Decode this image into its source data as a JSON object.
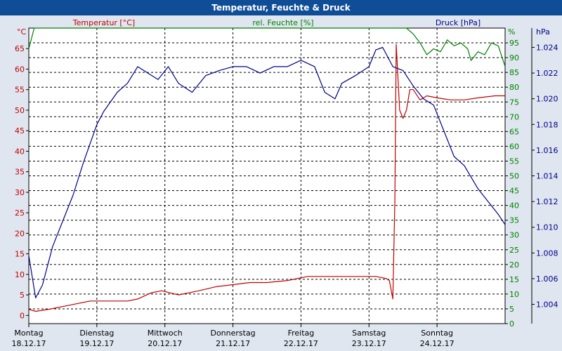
{
  "window": {
    "title": "Temperatur, Feuchte & Druck"
  },
  "colors": {
    "temperature": "#c00000",
    "humidity": "#008000",
    "pressure": "#00008b",
    "axis": "#000000",
    "grid": "#000000",
    "plot_bg": "#ffffff"
  },
  "chart_data": {
    "type": "line",
    "title": "Temperatur, Feuchte & Druck",
    "grid": true,
    "legend": "top",
    "x_axis": {
      "range": [
        "18.12.17 00:00",
        "25.12.17 00:00"
      ],
      "ticks": [
        {
          "day": "Montag",
          "date": "18.12.17"
        },
        {
          "day": "Dienstag",
          "date": "19.12.17"
        },
        {
          "day": "Mittwoch",
          "date": "20.12.17"
        },
        {
          "day": "Donnerstag",
          "date": "21.12.17"
        },
        {
          "day": "Freitag",
          "date": "22.12.17"
        },
        {
          "day": "Samstag",
          "date": "23.12.17"
        },
        {
          "day": "Sonntag",
          "date": "24.12.17"
        }
      ]
    },
    "axes": {
      "temperature": {
        "label": "Temperatur [°C]",
        "unit": "°C",
        "range": [
          -2,
          70
        ],
        "ticks": [
          "0",
          "5",
          "10",
          "15",
          "20",
          "25",
          "30",
          "35",
          "40",
          "45",
          "50",
          "55",
          "60",
          "65"
        ]
      },
      "humidity": {
        "label": "rel. Feuchte [%]",
        "unit": "%",
        "range": [
          0,
          100
        ],
        "ticks": [
          "0",
          "5",
          "10",
          "15",
          "20",
          "25",
          "30",
          "35",
          "40",
          "45",
          "50",
          "55",
          "60",
          "65",
          "70",
          "75",
          "80",
          "85",
          "90",
          "95"
        ]
      },
      "pressure": {
        "label": "Druck [hPa]",
        "unit": "hPa",
        "range": [
          1.0025,
          1.0255
        ],
        "ticks": [
          "1.004",
          "1.006",
          "1.008",
          "1.010",
          "1.012",
          "1.014",
          "1.016",
          "1.018",
          "1.020",
          "1.022",
          "1.024"
        ]
      }
    },
    "series": [
      {
        "name": "Temperatur [°C]",
        "axis": "temperature",
        "x": [
          0,
          0.1,
          0.3,
          0.6,
          0.9,
          1.2,
          1.45,
          1.6,
          1.8,
          1.95,
          2.2,
          2.5,
          2.75,
          3.0,
          3.25,
          3.5,
          3.8,
          4.1,
          4.5,
          4.95,
          5.1,
          5.25,
          5.3,
          5.35,
          5.38,
          5.4,
          5.45,
          5.5,
          5.55,
          5.6,
          5.65,
          5.75,
          5.85,
          6.0,
          6.2,
          6.4,
          6.6,
          6.85,
          7.0
        ],
        "y": [
          1.5,
          1.0,
          1.5,
          2.5,
          3.5,
          3.5,
          3.5,
          4.0,
          5.5,
          6.0,
          5.0,
          6.0,
          7.0,
          7.5,
          8.0,
          8.0,
          8.5,
          9.5,
          9.5,
          9.5,
          9.5,
          9.0,
          8.5,
          4.0,
          28.0,
          66.0,
          50.0,
          48.0,
          50.0,
          55.0,
          55.0,
          52.5,
          53.5,
          53.0,
          52.5,
          52.5,
          53.0,
          53.5,
          53.5
        ]
      },
      {
        "name": "rel. Feuchte [%]",
        "axis": "humidity",
        "x": [
          0,
          0.08,
          0.16,
          0.4,
          0.6,
          5.55,
          5.65,
          5.75,
          5.85,
          5.95,
          6.05,
          6.15,
          6.25,
          6.35,
          6.45,
          6.5,
          6.6,
          6.7,
          6.8,
          6.9,
          7.0
        ],
        "y": [
          93,
          100,
          100,
          100,
          100,
          100,
          98,
          95,
          91,
          93,
          92,
          96,
          94,
          95,
          93,
          89,
          92,
          91,
          95,
          94,
          87
        ]
      },
      {
        "name": "Druck [hPa]",
        "axis": "pressure",
        "x": [
          0,
          0.1,
          0.2,
          0.35,
          0.5,
          0.65,
          0.8,
          1.0,
          1.1,
          1.3,
          1.45,
          1.6,
          1.75,
          1.9,
          2.05,
          2.2,
          2.4,
          2.6,
          2.8,
          3.0,
          3.2,
          3.4,
          3.6,
          3.8,
          4.0,
          4.2,
          4.35,
          4.5,
          4.6,
          4.8,
          5.0,
          5.1,
          5.2,
          5.35,
          5.5,
          5.65,
          5.8,
          5.95,
          6.1,
          6.25,
          6.4,
          6.6,
          6.75,
          6.9,
          7.0
        ],
        "y": [
          1.0078,
          1.0045,
          1.0055,
          1.0085,
          1.0105,
          1.0125,
          1.015,
          1.018,
          1.019,
          1.0205,
          1.0212,
          1.0225,
          1.022,
          1.0215,
          1.0225,
          1.0212,
          1.0205,
          1.0218,
          1.0222,
          1.0225,
          1.0225,
          1.022,
          1.0225,
          1.0225,
          1.023,
          1.0225,
          1.0205,
          1.02,
          1.0212,
          1.0218,
          1.0225,
          1.0238,
          1.024,
          1.0225,
          1.0222,
          1.021,
          1.02,
          1.0195,
          1.0175,
          1.0155,
          1.0148,
          1.013,
          1.012,
          1.011,
          1.0102
        ]
      }
    ]
  }
}
